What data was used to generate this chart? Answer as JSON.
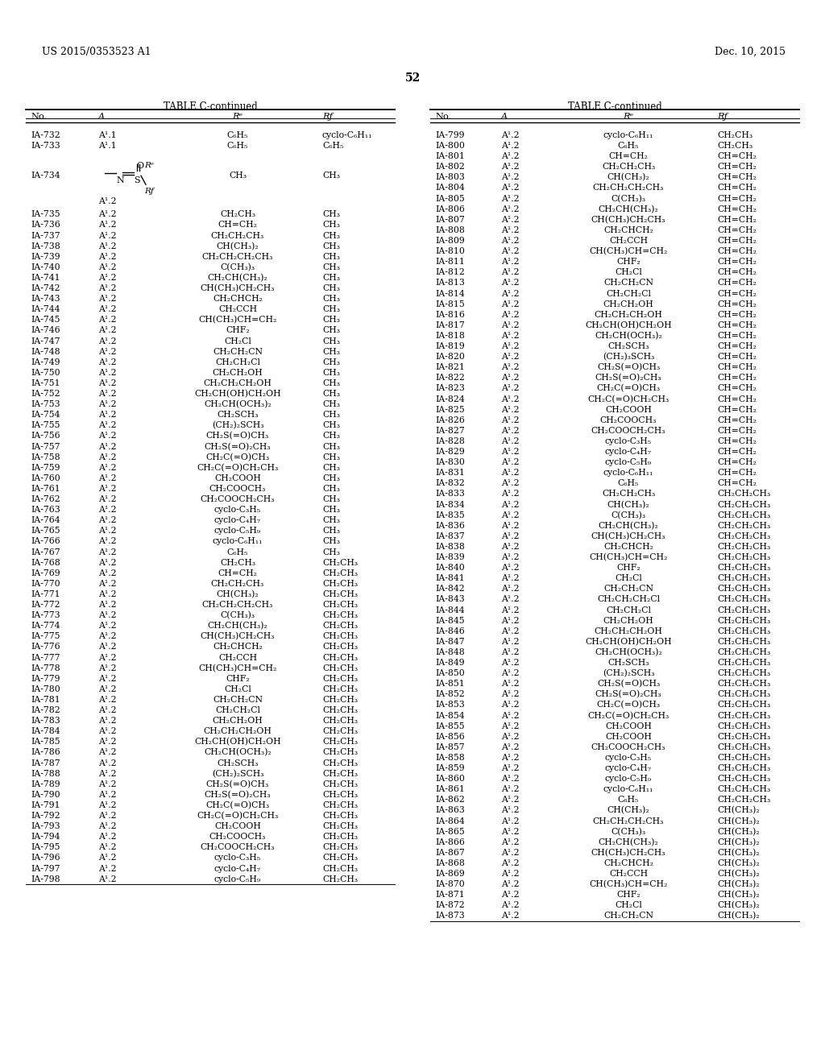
{
  "page_header_left": "US 2015/0353523 A1",
  "page_header_right": "Dec. 10, 2015",
  "page_number": "52",
  "table_title": "TABLE C-continued",
  "col_headers": [
    "No.",
    "A",
    "Rᵉ",
    "Rƒ"
  ],
  "background_color": "#ffffff",
  "text_color": "#000000",
  "left_table": {
    "rows": [
      [
        "IA-732",
        "A¹.1",
        "C₆H₅",
        "cyclo-C₆H₁₁"
      ],
      [
        "IA-733",
        "A¹.1",
        "C₆H₅",
        "C₆H₅"
      ],
      [
        "IA-734",
        "",
        "CH₃",
        "CH₃"
      ],
      [
        "IA-735",
        "A¹.2",
        "CH₂CH₃",
        "CH₃"
      ],
      [
        "IA-736",
        "A¹.2",
        "CH=CH₂",
        "CH₃"
      ],
      [
        "IA-737",
        "A¹.2",
        "CH₂CH₂CH₃",
        "CH₃"
      ],
      [
        "IA-738",
        "A¹.2",
        "CH(CH₃)₂",
        "CH₃"
      ],
      [
        "IA-739",
        "A¹.2",
        "CH₂CH₂CH₂CH₃",
        "CH₃"
      ],
      [
        "IA-740",
        "A¹.2",
        "C(CH₃)₃",
        "CH₃"
      ],
      [
        "IA-741",
        "A¹.2",
        "CH₂CH(CH₃)₂",
        "CH₃"
      ],
      [
        "IA-742",
        "A¹.2",
        "CH(CH₃)CH₂CH₃",
        "CH₃"
      ],
      [
        "IA-743",
        "A¹.2",
        "CH₂CHCH₂",
        "CH₃"
      ],
      [
        "IA-744",
        "A¹.2",
        "CH₂CCH",
        "CH₃"
      ],
      [
        "IA-745",
        "A¹.2",
        "CH(CH₃)CH=CH₂",
        "CH₃"
      ],
      [
        "IA-746",
        "A¹.2",
        "CHF₂",
        "CH₃"
      ],
      [
        "IA-747",
        "A¹.2",
        "CH₂Cl",
        "CH₃"
      ],
      [
        "IA-748",
        "A¹.2",
        "CH₂CH₂CN",
        "CH₃"
      ],
      [
        "IA-749",
        "A¹.2",
        "CH₂CH₂Cl",
        "CH₃"
      ],
      [
        "IA-750",
        "A¹.2",
        "CH₂CH₂OH",
        "CH₃"
      ],
      [
        "IA-751",
        "A¹.2",
        "CH₂CH₂CH₂OH",
        "CH₃"
      ],
      [
        "IA-752",
        "A¹.2",
        "CH₂CH(OH)CH₂OH",
        "CH₃"
      ],
      [
        "IA-753",
        "A¹.2",
        "CH₂CH(OCH₃)₂",
        "CH₃"
      ],
      [
        "IA-754",
        "A¹.2",
        "CH₂SCH₃",
        "CH₃"
      ],
      [
        "IA-755",
        "A¹.2",
        "(CH₂)₂SCH₃",
        "CH₃"
      ],
      [
        "IA-756",
        "A¹.2",
        "CH₂S(=O)CH₃",
        "CH₃"
      ],
      [
        "IA-757",
        "A¹.2",
        "CH₂S(=O)₂CH₃",
        "CH₃"
      ],
      [
        "IA-758",
        "A¹.2",
        "CH₂C(=O)CH₃",
        "CH₃"
      ],
      [
        "IA-759",
        "A¹.2",
        "CH₂C(=O)CH₂CH₃",
        "CH₃"
      ],
      [
        "IA-760",
        "A¹.2",
        "CH₂COOH",
        "CH₃"
      ],
      [
        "IA-761",
        "A¹.2",
        "CH₂COOCH₃",
        "CH₃"
      ],
      [
        "IA-762",
        "A¹.2",
        "CH₂COOCH₂CH₃",
        "CH₃"
      ],
      [
        "IA-763",
        "A¹.2",
        "cyclo-C₃H₅",
        "CH₃"
      ],
      [
        "IA-764",
        "A¹.2",
        "cyclo-C₄H₇",
        "CH₃"
      ],
      [
        "IA-765",
        "A¹.2",
        "cyclo-C₅H₉",
        "CH₃"
      ],
      [
        "IA-766",
        "A¹.2",
        "cyclo-C₆H₁₁",
        "CH₃"
      ],
      [
        "IA-767",
        "A¹.2",
        "C₆H₅",
        "CH₃"
      ],
      [
        "IA-768",
        "A¹.2",
        "CH₂CH₃",
        "CH₂CH₃"
      ],
      [
        "IA-769",
        "A¹.2",
        "CH=CH₂",
        "CH₂CH₃"
      ],
      [
        "IA-770",
        "A¹.2",
        "CH₂CH₂CH₃",
        "CH₂CH₃"
      ],
      [
        "IA-771",
        "A¹.2",
        "CH(CH₃)₂",
        "CH₂CH₃"
      ],
      [
        "IA-772",
        "A¹.2",
        "CH₂CH₂CH₂CH₃",
        "CH₂CH₃"
      ],
      [
        "IA-773",
        "A¹.2",
        "C(CH₃)₃",
        "CH₂CH₃"
      ],
      [
        "IA-774",
        "A¹.2",
        "CH₂CH(CH₃)₂",
        "CH₂CH₃"
      ],
      [
        "IA-775",
        "A¹.2",
        "CH(CH₃)CH₂CH₃",
        "CH₂CH₃"
      ],
      [
        "IA-776",
        "A¹.2",
        "CH₂CHCH₂",
        "CH₂CH₃"
      ],
      [
        "IA-777",
        "A¹.2",
        "CH₂CCH",
        "CH₂CH₃"
      ],
      [
        "IA-778",
        "A¹.2",
        "CH(CH₃)CH=CH₂",
        "CH₂CH₃"
      ],
      [
        "IA-779",
        "A¹.2",
        "CHF₂",
        "CH₂CH₃"
      ],
      [
        "IA-780",
        "A¹.2",
        "CH₂Cl",
        "CH₂CH₃"
      ],
      [
        "IA-781",
        "A¹.2",
        "CH₂CH₂CN",
        "CH₂CH₃"
      ],
      [
        "IA-782",
        "A¹.2",
        "CH₂CH₂Cl",
        "CH₂CH₃"
      ],
      [
        "IA-783",
        "A¹.2",
        "CH₂CH₂OH",
        "CH₂CH₃"
      ],
      [
        "IA-784",
        "A¹.2",
        "CH₂CH₂CH₂OH",
        "CH₂CH₃"
      ],
      [
        "IA-785",
        "A¹.2",
        "CH₂CH(OH)CH₂OH",
        "CH₂CH₃"
      ],
      [
        "IA-786",
        "A¹.2",
        "CH₂CH(OCH₃)₂",
        "CH₂CH₃"
      ],
      [
        "IA-787",
        "A¹.2",
        "CH₂SCH₃",
        "CH₂CH₃"
      ],
      [
        "IA-788",
        "A¹.2",
        "(CH₂)₂SCH₃",
        "CH₂CH₃"
      ],
      [
        "IA-789",
        "A¹.2",
        "CH₂S(=O)CH₃",
        "CH₂CH₃"
      ],
      [
        "IA-790",
        "A¹.2",
        "CH₂S(=O)₂CH₃",
        "CH₂CH₃"
      ],
      [
        "IA-791",
        "A¹.2",
        "CH₂C(=O)CH₃",
        "CH₂CH₃"
      ],
      [
        "IA-792",
        "A¹.2",
        "CH₂C(=O)CH₂CH₃",
        "CH₂CH₃"
      ],
      [
        "IA-793",
        "A¹.2",
        "CH₂COOH",
        "CH₂CH₃"
      ],
      [
        "IA-794",
        "A¹.2",
        "CH₂COOCH₃",
        "CH₂CH₃"
      ],
      [
        "IA-795",
        "A¹.2",
        "CH₂COOCH₂CH₃",
        "CH₂CH₃"
      ],
      [
        "IA-796",
        "A¹.2",
        "cyclo-C₃H₅",
        "CH₂CH₃"
      ],
      [
        "IA-797",
        "A¹.2",
        "cyclo-C₄H₇",
        "CH₂CH₃"
      ],
      [
        "IA-798",
        "A¹.2",
        "cyclo-C₅H₉",
        "CH₂CH₃"
      ]
    ]
  },
  "right_table": {
    "rows": [
      [
        "IA-799",
        "A¹.2",
        "cyclo-C₆H₁₁",
        "CH₂CH₃"
      ],
      [
        "IA-800",
        "A¹.2",
        "C₆H₅",
        "CH₂CH₃"
      ],
      [
        "IA-801",
        "A¹.2",
        "CH=CH₂",
        "CH=CH₂"
      ],
      [
        "IA-802",
        "A¹.2",
        "CH₂CH₂CH₃",
        "CH=CH₂"
      ],
      [
        "IA-803",
        "A¹.2",
        "CH(CH₃)₂",
        "CH=CH₂"
      ],
      [
        "IA-804",
        "A¹.2",
        "CH₂CH₂CH₂CH₃",
        "CH=CH₂"
      ],
      [
        "IA-805",
        "A¹.2",
        "C(CH₃)₃",
        "CH=CH₂"
      ],
      [
        "IA-806",
        "A¹.2",
        "CH₂CH(CH₃)₂",
        "CH=CH₂"
      ],
      [
        "IA-807",
        "A¹.2",
        "CH(CH₃)CH₂CH₃",
        "CH=CH₂"
      ],
      [
        "IA-808",
        "A¹.2",
        "CH₂CHCH₂",
        "CH=CH₂"
      ],
      [
        "IA-809",
        "A¹.2",
        "CH₂CCH",
        "CH=CH₂"
      ],
      [
        "IA-810",
        "A¹.2",
        "CH(CH₃)CH=CH₂",
        "CH=CH₂"
      ],
      [
        "IA-811",
        "A¹.2",
        "CHF₂",
        "CH=CH₂"
      ],
      [
        "IA-812",
        "A¹.2",
        "CH₂Cl",
        "CH=CH₂"
      ],
      [
        "IA-813",
        "A¹.2",
        "CH₂CH₂CN",
        "CH=CH₂"
      ],
      [
        "IA-814",
        "A¹.2",
        "CH₂CH₂Cl",
        "CH=CH₂"
      ],
      [
        "IA-815",
        "A¹.2",
        "CH₂CH₂OH",
        "CH=CH₂"
      ],
      [
        "IA-816",
        "A¹.2",
        "CH₂CH₂CH₂OH",
        "CH=CH₂"
      ],
      [
        "IA-817",
        "A¹.2",
        "CH₂CH(OH)CH₂OH",
        "CH=CH₂"
      ],
      [
        "IA-818",
        "A¹.2",
        "CH₂CH(OCH₃)₂",
        "CH=CH₂"
      ],
      [
        "IA-819",
        "A¹.2",
        "CH₂SCH₃",
        "CH=CH₂"
      ],
      [
        "IA-820",
        "A¹.2",
        "(CH₂)₃SCH₃",
        "CH=CH₂"
      ],
      [
        "IA-821",
        "A¹.2",
        "CH₂S(=O)CH₃",
        "CH=CH₂"
      ],
      [
        "IA-822",
        "A¹.2",
        "CH₂S(=O)₂CH₃",
        "CH=CH₂"
      ],
      [
        "IA-823",
        "A¹.2",
        "CH₂C(=O)CH₃",
        "CH=CH₂"
      ],
      [
        "IA-824",
        "A¹.2",
        "CH₂C(=O)CH₂CH₃",
        "CH=CH₂"
      ],
      [
        "IA-825",
        "A¹.2",
        "CH₂COOH",
        "CH=CH₂"
      ],
      [
        "IA-826",
        "A¹.2",
        "CH₂COOCH₃",
        "CH=CH₂"
      ],
      [
        "IA-827",
        "A¹.2",
        "CH₂COOCH₂CH₃",
        "CH=CH₂"
      ],
      [
        "IA-828",
        "A¹.2",
        "cyclo-C₃H₅",
        "CH=CH₂"
      ],
      [
        "IA-829",
        "A¹.2",
        "cyclo-C₄H₇",
        "CH=CH₂"
      ],
      [
        "IA-830",
        "A¹.2",
        "cyclo-C₅H₉",
        "CH=CH₂"
      ],
      [
        "IA-831",
        "A¹.2",
        "cyclo-C₆H₁₁",
        "CH=CH₂"
      ],
      [
        "IA-832",
        "A¹.2",
        "C₆H₅",
        "CH=CH₂"
      ],
      [
        "IA-833",
        "A¹.2",
        "CH₂CH₂CH₃",
        "CH₂CH₂CH₃"
      ],
      [
        "IA-834",
        "A¹.2",
        "CH(CH₃)₂",
        "CH₂CH₂CH₃"
      ],
      [
        "IA-835",
        "A¹.2",
        "C(CH₃)₃",
        "CH₂CH₂CH₃"
      ],
      [
        "IA-836",
        "A¹.2",
        "CH₂CH(CH₃)₂",
        "CH₂CH₂CH₃"
      ],
      [
        "IA-837",
        "A¹.2",
        "CH(CH₃)CH₂CH₃",
        "CH₂CH₂CH₃"
      ],
      [
        "IA-838",
        "A¹.2",
        "CH₂CHCH₂",
        "CH₂CH₂CH₃"
      ],
      [
        "IA-839",
        "A¹.2",
        "CH(CH₃)CH=CH₂",
        "CH₂CH₂CH₃"
      ],
      [
        "IA-840",
        "A¹.2",
        "CHF₂",
        "CH₂CH₂CH₃"
      ],
      [
        "IA-841",
        "A¹.2",
        "CH₂Cl",
        "CH₂CH₂CH₃"
      ],
      [
        "IA-842",
        "A¹.2",
        "CH₂CH₂CN",
        "CH₂CH₂CH₃"
      ],
      [
        "IA-843",
        "A¹.2",
        "CH₂CH₂CH₂Cl",
        "CH₂CH₂CH₃"
      ],
      [
        "IA-844",
        "A¹.2",
        "CH₂CH₂Cl",
        "CH₂CH₂CH₃"
      ],
      [
        "IA-845",
        "A¹.2",
        "CH₂CH₂OH",
        "CH₂CH₂CH₃"
      ],
      [
        "IA-846",
        "A¹.2",
        "CH₂CH₂CH₂OH",
        "CH₂CH₂CH₃"
      ],
      [
        "IA-847",
        "A¹.2",
        "CH₂CH(OH)CH₂OH",
        "CH₂CH₂CH₃"
      ],
      [
        "IA-848",
        "A¹.2",
        "CH₂CH(OCH₃)₂",
        "CH₂CH₂CH₃"
      ],
      [
        "IA-849",
        "A¹.2",
        "CH₂SCH₃",
        "CH₂CH₂CH₃"
      ],
      [
        "IA-850",
        "A¹.2",
        "(CH₂)₂SCH₃",
        "CH₂CH₂CH₃"
      ],
      [
        "IA-851",
        "A¹.2",
        "CH₂S(=O)CH₃",
        "CH₂CH₂CH₃"
      ],
      [
        "IA-852",
        "A¹.2",
        "CH₂S(=O)₂CH₃",
        "CH₂CH₂CH₃"
      ],
      [
        "IA-853",
        "A¹.2",
        "CH₂C(=O)CH₃",
        "CH₂CH₂CH₃"
      ],
      [
        "IA-854",
        "A¹.2",
        "CH₂C(=O)CH₂CH₃",
        "CH₂CH₂CH₃"
      ],
      [
        "IA-855",
        "A¹.2",
        "CH₂COOH",
        "CH₂CH₂CH₃"
      ],
      [
        "IA-856",
        "A¹.2",
        "CH₂COOH",
        "CH₂CH₂CH₃"
      ],
      [
        "IA-857",
        "A¹.2",
        "CH₂COOCH₂CH₃",
        "CH₂CH₂CH₃"
      ],
      [
        "IA-858",
        "A¹.2",
        "cyclo-C₃H₅",
        "CH₂CH₂CH₃"
      ],
      [
        "IA-859",
        "A¹.2",
        "cyclo-C₄H₇",
        "CH₂CH₂CH₃"
      ],
      [
        "IA-860",
        "A¹.2",
        "cyclo-C₅H₉",
        "CH₂CH₂CH₃"
      ],
      [
        "IA-861",
        "A¹.2",
        "cyclo-C₆H₁₁",
        "CH₂CH₂CH₃"
      ],
      [
        "IA-862",
        "A¹.2",
        "C₆H₅",
        "CH₂CH₂CH₃"
      ],
      [
        "IA-863",
        "A¹.2",
        "CH(CH₃)₂",
        "CH(CH₃)₂"
      ],
      [
        "IA-864",
        "A¹.2",
        "CH₂CH₂CH₂CH₃",
        "CH(CH₃)₂"
      ],
      [
        "IA-865",
        "A¹.2",
        "C(CH₃)₃",
        "CH(CH₃)₂"
      ],
      [
        "IA-866",
        "A¹.2",
        "CH₂CH(CH₃)₂",
        "CH(CH₃)₂"
      ],
      [
        "IA-867",
        "A¹.2",
        "CH(CH₃)CH₂CH₃",
        "CH(CH₃)₂"
      ],
      [
        "IA-868",
        "A¹.2",
        "CH₂CHCH₂",
        "CH(CH₃)₂"
      ],
      [
        "IA-869",
        "A¹.2",
        "CH₂CCH",
        "CH(CH₃)₂"
      ],
      [
        "IA-870",
        "A¹.2",
        "CH(CH₃)CH=CH₂",
        "CH(CH₃)₂"
      ],
      [
        "IA-871",
        "A¹.2",
        "CHF₂",
        "CH(CH₃)₂"
      ],
      [
        "IA-872",
        "A¹.2",
        "CH₂Cl",
        "CH(CH₃)₂"
      ],
      [
        "IA-873",
        "A¹.2",
        "CH₂CH₂CN",
        "CH(CH₃)₂"
      ]
    ]
  }
}
